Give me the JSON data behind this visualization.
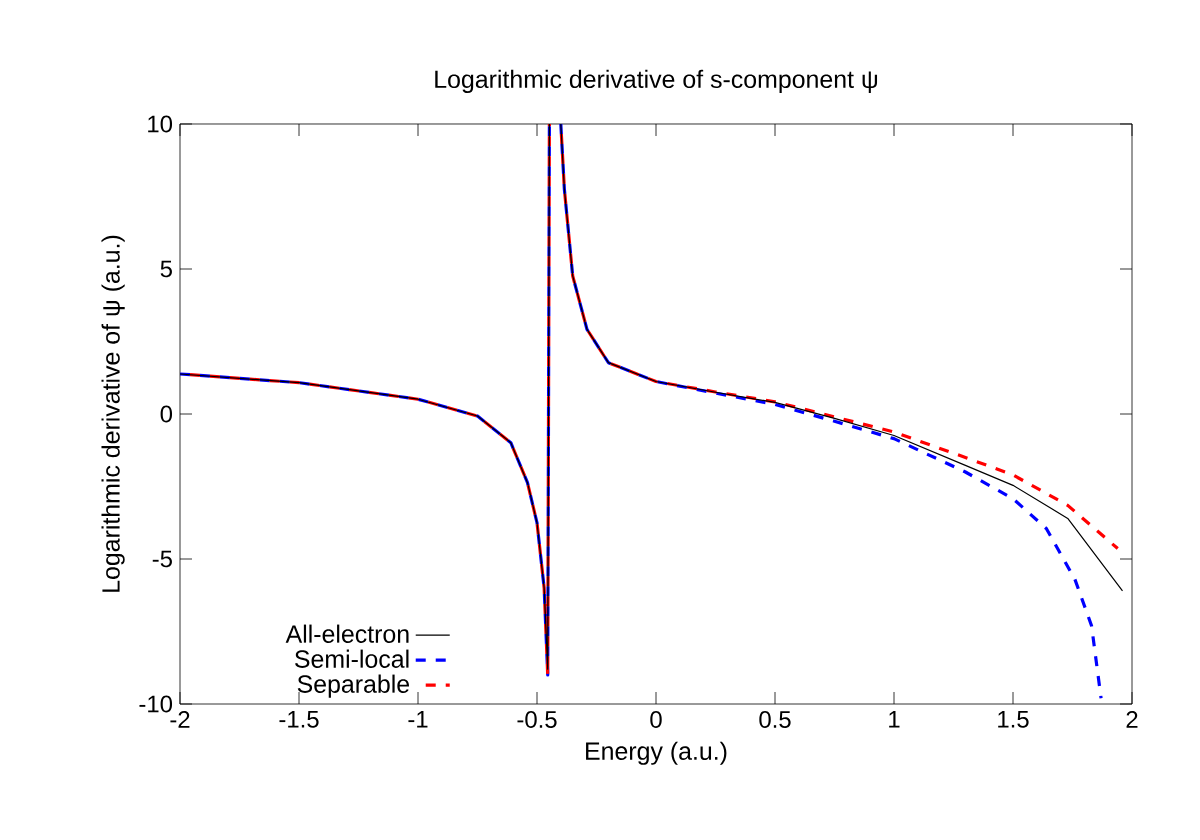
{
  "chart_data": {
    "type": "line",
    "title": "Logarithmic derivative of s-component ψ",
    "xlabel": "Energy (a.u.)",
    "ylabel": "Logarithmic derivative of ψ (a.u.)",
    "xlim": [
      -2,
      2
    ],
    "ylim": [
      -10,
      10
    ],
    "xticks": [
      -2,
      -1.5,
      -1,
      -0.5,
      0,
      0.5,
      1,
      1.5,
      2
    ],
    "yticks": [
      -10,
      -5,
      0,
      5,
      10
    ],
    "grid": false,
    "legend": "bottom left",
    "marker": "none",
    "series": [
      {
        "name": "All-electron",
        "color": "#000000",
        "line_style": "solid",
        "x": [
          -2,
          -1.5,
          -1,
          -0.75,
          -0.61,
          -0.54,
          -0.5,
          -0.47,
          -0.455,
          -0.448,
          null,
          -0.4,
          -0.385,
          -0.35,
          -0.29,
          -0.2,
          0,
          0.25,
          0.5,
          0.75,
          1,
          1.3,
          1.5,
          1.73,
          1.96
        ],
        "values": [
          1.38,
          1.08,
          0.51,
          -0.07,
          -0.99,
          -2.37,
          -3.75,
          -6,
          -8.8,
          10,
          null,
          10,
          7.75,
          4.76,
          2.92,
          1.77,
          1.12,
          0.75,
          0.4,
          -0.15,
          -0.74,
          -1.77,
          -2.46,
          -3.6,
          -6.1
        ]
      },
      {
        "name": "Semi-local",
        "color": "#0000ff",
        "line_style": "dashed",
        "x": [
          -2,
          -1.5,
          -1,
          -0.75,
          -0.61,
          -0.54,
          -0.5,
          -0.47,
          -0.455,
          -0.448,
          null,
          -0.4,
          -0.385,
          -0.35,
          -0.29,
          -0.2,
          0,
          0.25,
          0.5,
          0.75,
          1,
          1.3,
          1.5,
          1.64,
          1.76,
          1.83,
          1.87
        ],
        "values": [
          1.38,
          1.08,
          0.51,
          -0.07,
          -0.99,
          -2.37,
          -3.75,
          -6,
          -9,
          10,
          null,
          10,
          7.75,
          4.76,
          2.92,
          1.77,
          1.12,
          0.72,
          0.33,
          -0.25,
          -0.85,
          -2,
          -2.92,
          -3.95,
          -5.7,
          -7.3,
          -9.8
        ]
      },
      {
        "name": "Separable",
        "color": "#ff0000",
        "line_style": "dashed",
        "x": [
          -2,
          -1.5,
          -1,
          -0.75,
          -0.61,
          -0.54,
          -0.5,
          -0.47,
          -0.455,
          -0.448,
          null,
          -0.4,
          -0.385,
          -0.35,
          -0.29,
          -0.2,
          0,
          0.25,
          0.5,
          0.75,
          1,
          1.3,
          1.5,
          1.73,
          1.94
        ],
        "values": [
          1.38,
          1.08,
          0.51,
          -0.07,
          -0.99,
          -2.37,
          -3.75,
          -6,
          -9,
          10,
          null,
          10,
          7.75,
          4.76,
          2.92,
          1.77,
          1.12,
          0.76,
          0.42,
          -0.1,
          -0.62,
          -1.5,
          -2.1,
          -3.15,
          -4.64
        ]
      }
    ]
  }
}
